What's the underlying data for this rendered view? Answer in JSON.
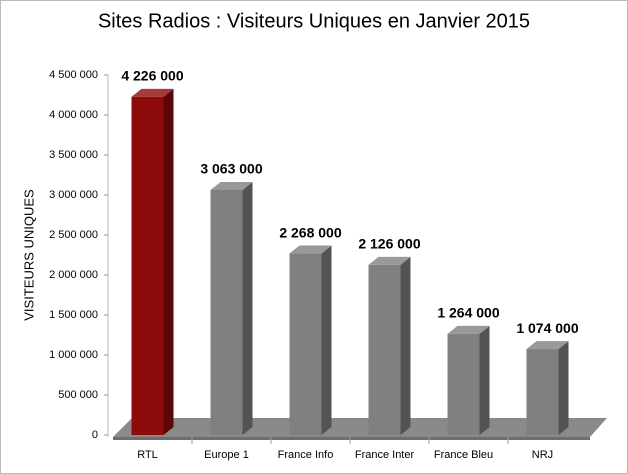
{
  "chart_data": {
    "type": "bar3d",
    "title": "Sites Radios : Visiteurs Uniques  en Janvier 2015",
    "y_label": "VISITEURS UNIQUES",
    "categories": [
      "RTL",
      "Europe 1",
      "France Info",
      "France Inter",
      "France Bleu",
      "NRJ"
    ],
    "values": [
      4226000,
      3063000,
      2268000,
      2126000,
      1264000,
      1074000
    ],
    "value_labels": [
      "4 226 000",
      "3 063 000",
      "2 268 000",
      "2 126 000",
      "1 264 000",
      "1 074 000"
    ],
    "colors": [
      "#8e0b0b",
      "#808080",
      "#808080",
      "#808080",
      "#808080",
      "#808080"
    ],
    "ylim": [
      0,
      4500000
    ],
    "yticks": [
      0,
      {
        "value": 500000,
        "label": "500 000"
      },
      {
        "value": 1000000,
        "label": "1 000 000"
      },
      {
        "value": 1500000,
        "label": "1 500 000"
      },
      {
        "value": 2000000,
        "label": "2 000 000"
      },
      {
        "value": 2500000,
        "label": "2 500 000"
      },
      {
        "value": 3000000,
        "label": "3 000 000"
      },
      {
        "value": 3500000,
        "label": "3 500 000"
      },
      {
        "value": 4000000,
        "label": "4 000 000"
      },
      {
        "value": 4500000,
        "label": "4 500 000"
      }
    ]
  }
}
